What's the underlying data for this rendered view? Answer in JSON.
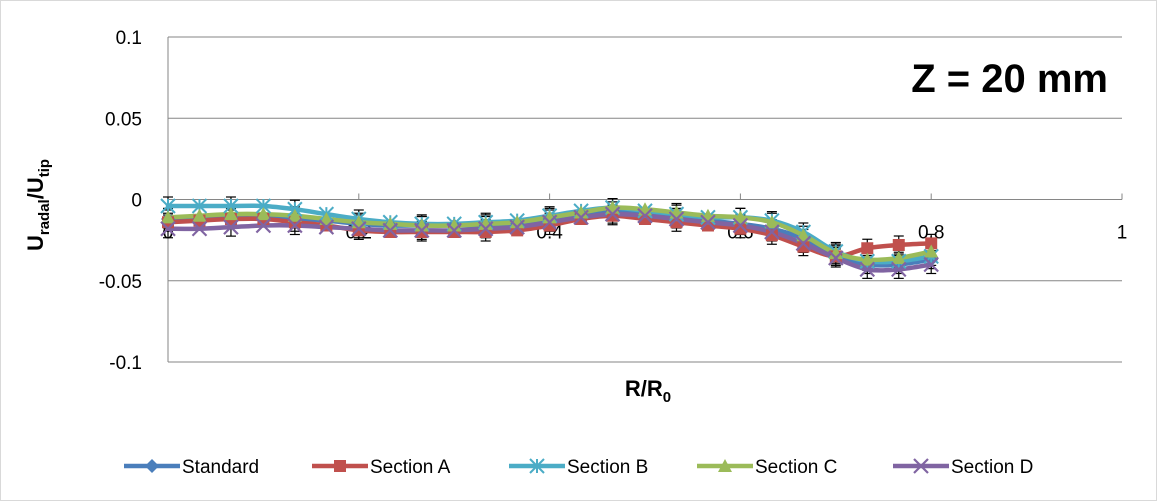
{
  "chart_data": {
    "type": "line",
    "title": "",
    "annotation": "Z = 20 mm",
    "xlabel": {
      "main": "R/R",
      "sub": "0"
    },
    "ylabel": {
      "u": "U",
      "sub1": "radal",
      "slash": "/U",
      "sub2": "tip"
    },
    "xlim": [
      0,
      1
    ],
    "ylim": [
      -0.1,
      0.1
    ],
    "x_ticks": [
      0,
      0.2,
      0.4,
      0.6,
      0.8,
      1
    ],
    "x_tick_labels": [
      "0",
      "0.2",
      "0.4",
      "0.6",
      "0.8",
      "1"
    ],
    "y_ticks": [
      0.1,
      0.05,
      0,
      -0.05,
      -0.1
    ],
    "y_tick_labels": [
      "0.1",
      "0.05",
      "0",
      "-0.05",
      "-0.1"
    ],
    "grid": "horizontal",
    "legend_position": "bottom",
    "x": [
      0,
      0.033,
      0.066,
      0.1,
      0.133,
      0.166,
      0.2,
      0.233,
      0.266,
      0.3,
      0.333,
      0.366,
      0.4,
      0.433,
      0.466,
      0.5,
      0.533,
      0.566,
      0.6,
      0.633,
      0.666,
      0.7,
      0.733,
      0.766,
      0.8
    ],
    "series": [
      {
        "name": "Standard",
        "color": "#4a7ebb",
        "marker": "diamond",
        "values": [
          -0.012,
          -0.012,
          -0.011,
          -0.011,
          -0.012,
          -0.013,
          -0.015,
          -0.016,
          -0.016,
          -0.016,
          -0.016,
          -0.015,
          -0.012,
          -0.009,
          -0.007,
          -0.009,
          -0.011,
          -0.013,
          -0.015,
          -0.018,
          -0.024,
          -0.034,
          -0.04,
          -0.04,
          -0.037
        ]
      },
      {
        "name": "Section A",
        "color": "#c0504d",
        "marker": "square",
        "values": [
          -0.014,
          -0.013,
          -0.012,
          -0.012,
          -0.014,
          -0.016,
          -0.019,
          -0.02,
          -0.02,
          -0.02,
          -0.02,
          -0.019,
          -0.016,
          -0.012,
          -0.01,
          -0.012,
          -0.014,
          -0.016,
          -0.018,
          -0.022,
          -0.029,
          -0.035,
          -0.03,
          -0.028,
          -0.027
        ]
      },
      {
        "name": "Section B",
        "color": "#4bacc6",
        "marker": "asterisk",
        "values": [
          -0.004,
          -0.004,
          -0.004,
          -0.004,
          -0.006,
          -0.009,
          -0.012,
          -0.014,
          -0.015,
          -0.015,
          -0.014,
          -0.013,
          -0.01,
          -0.007,
          -0.005,
          -0.007,
          -0.009,
          -0.011,
          -0.011,
          -0.013,
          -0.02,
          -0.032,
          -0.038,
          -0.038,
          -0.035
        ]
      },
      {
        "name": "Section C",
        "color": "#9bbb59",
        "marker": "triangle",
        "values": [
          -0.011,
          -0.01,
          -0.009,
          -0.009,
          -0.01,
          -0.012,
          -0.014,
          -0.015,
          -0.016,
          -0.016,
          -0.015,
          -0.014,
          -0.011,
          -0.008,
          -0.005,
          -0.006,
          -0.008,
          -0.01,
          -0.011,
          -0.014,
          -0.022,
          -0.033,
          -0.037,
          -0.036,
          -0.032
        ]
      },
      {
        "name": "Section D",
        "color": "#8064a2",
        "marker": "x",
        "values": [
          -0.018,
          -0.018,
          -0.017,
          -0.016,
          -0.016,
          -0.017,
          -0.018,
          -0.019,
          -0.019,
          -0.019,
          -0.018,
          -0.017,
          -0.014,
          -0.011,
          -0.009,
          -0.01,
          -0.012,
          -0.014,
          -0.016,
          -0.02,
          -0.027,
          -0.036,
          -0.043,
          -0.043,
          -0.04
        ]
      }
    ]
  }
}
